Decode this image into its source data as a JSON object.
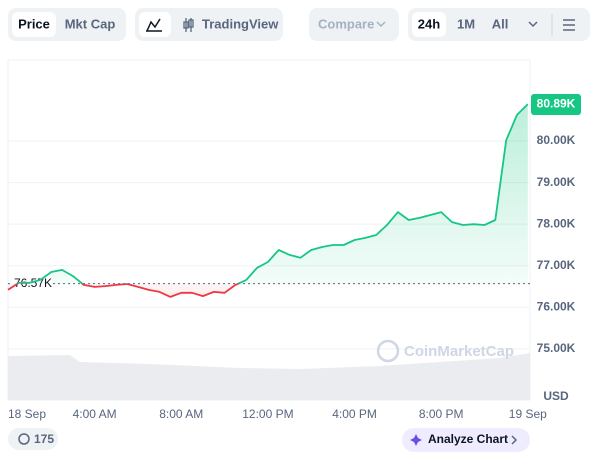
{
  "toolbar": {
    "price": "Price",
    "mkt_cap": "Mkt Cap",
    "tradingview": "TradingView",
    "compare": "Compare",
    "ranges": [
      "24h",
      "1M",
      "All"
    ]
  },
  "chart_data": {
    "type": "line",
    "x": [
      0,
      0.5,
      1,
      1.5,
      2,
      2.5,
      3,
      3.5,
      4,
      4.5,
      5,
      5.5,
      6,
      6.5,
      7,
      7.5,
      8,
      8.5,
      9,
      9.5,
      10,
      10.5,
      11,
      11.5,
      12,
      12.5,
      13,
      13.5,
      14,
      14.5,
      15,
      15.5,
      16,
      16.5,
      17,
      17.5,
      18,
      18.5,
      19,
      19.5,
      20,
      20.5,
      21,
      21.5,
      22,
      22.5,
      23,
      23.5,
      24
    ],
    "values": [
      76420,
      76590,
      76590,
      76660,
      76850,
      76900,
      76750,
      76540,
      76490,
      76510,
      76540,
      76560,
      76490,
      76420,
      76370,
      76250,
      76350,
      76350,
      76270,
      76370,
      76350,
      76540,
      76660,
      76950,
      77090,
      77380,
      77260,
      77190,
      77380,
      77450,
      77500,
      77500,
      77620,
      77670,
      77740,
      77980,
      78290,
      78100,
      78150,
      78220,
      78290,
      78050,
      77980,
      78000,
      77980,
      78100,
      80020,
      80630,
      80890
    ],
    "color_up": "#16c784",
    "color_down": "#ea3943",
    "xlim": [
      0,
      24.1
    ],
    "xticks": [
      {
        "value": 0,
        "label": "18 Sep"
      },
      {
        "value": 4,
        "label": "4:00 AM"
      },
      {
        "value": 8,
        "label": "8:00 AM"
      },
      {
        "value": 12,
        "label": "12:00 PM"
      },
      {
        "value": 16,
        "label": "4:00 PM"
      },
      {
        "value": 20,
        "label": "8:00 PM"
      },
      {
        "value": 24,
        "label": "19 Sep"
      }
    ],
    "ylim": [
      73770,
      81950
    ],
    "yticks": [
      {
        "value": 75000,
        "label": "75.00K"
      },
      {
        "value": 76000,
        "label": "76.00K"
      },
      {
        "value": 77000,
        "label": "77.00K"
      },
      {
        "value": 78000,
        "label": "78.00K"
      },
      {
        "value": 79000,
        "label": "79.00K"
      },
      {
        "value": 80000,
        "label": "80.00K"
      }
    ],
    "y_unit": "USD",
    "baseline": {
      "value": 76570,
      "label": "76.57K"
    },
    "last_price": {
      "value": 80890,
      "label": "80.89K"
    },
    "watermark": "CoinMarketCap",
    "grid": true
  },
  "footer": {
    "comments": "175",
    "analyze": "Analyze Chart"
  }
}
